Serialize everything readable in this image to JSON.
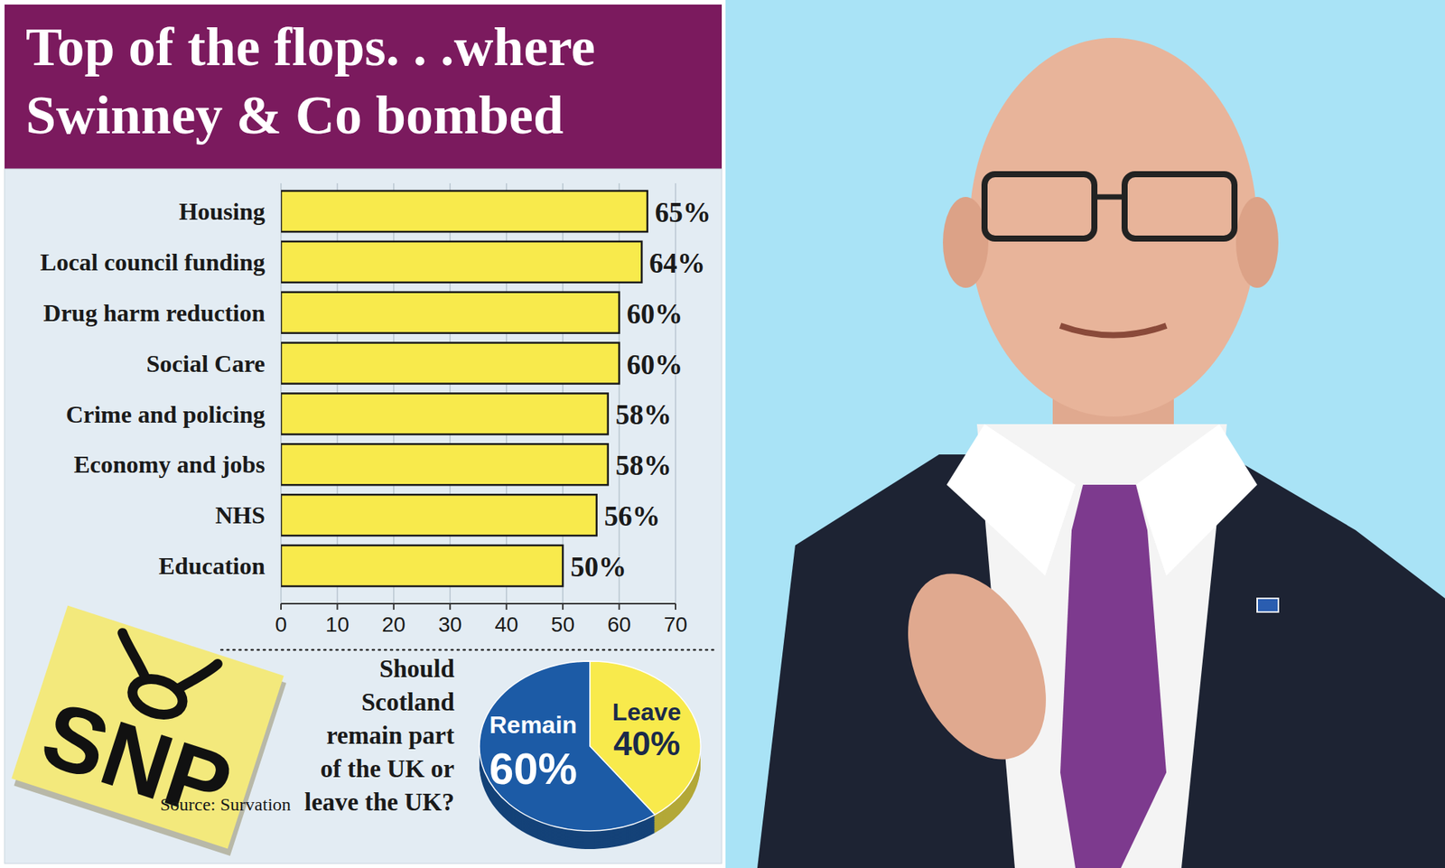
{
  "chart_data": [
    {
      "type": "bar",
      "title": "Top of the flops. . .where Swinney & Co bombed",
      "orientation": "horizontal",
      "categories": [
        "Housing",
        "Local council funding",
        "Drug harm reduction",
        "Social Care",
        "Crime and policing",
        "Economy and jobs",
        "NHS",
        "Education"
      ],
      "values": [
        65,
        64,
        60,
        60,
        58,
        58,
        56,
        50
      ],
      "value_labels": [
        "65%",
        "64%",
        "60%",
        "60%",
        "58%",
        "58%",
        "56%",
        "50%"
      ],
      "data_labels": true,
      "color": "#f8ea4c",
      "xlim": [
        0,
        70
      ],
      "xticks": [
        0,
        10,
        20,
        30,
        40,
        50,
        60,
        70
      ],
      "grid": true
    },
    {
      "type": "pie",
      "title": "Should Scotland remain part of the UK or leave the UK?",
      "categories": [
        "Remain",
        "Leave"
      ],
      "values": [
        60,
        40
      ],
      "value_labels": [
        "60%",
        "40%"
      ],
      "colors": [
        "#1c5ba6",
        "#f8ea4c"
      ],
      "data_labels": true
    }
  ],
  "logo": "SNP",
  "source": "Source: Survation"
}
